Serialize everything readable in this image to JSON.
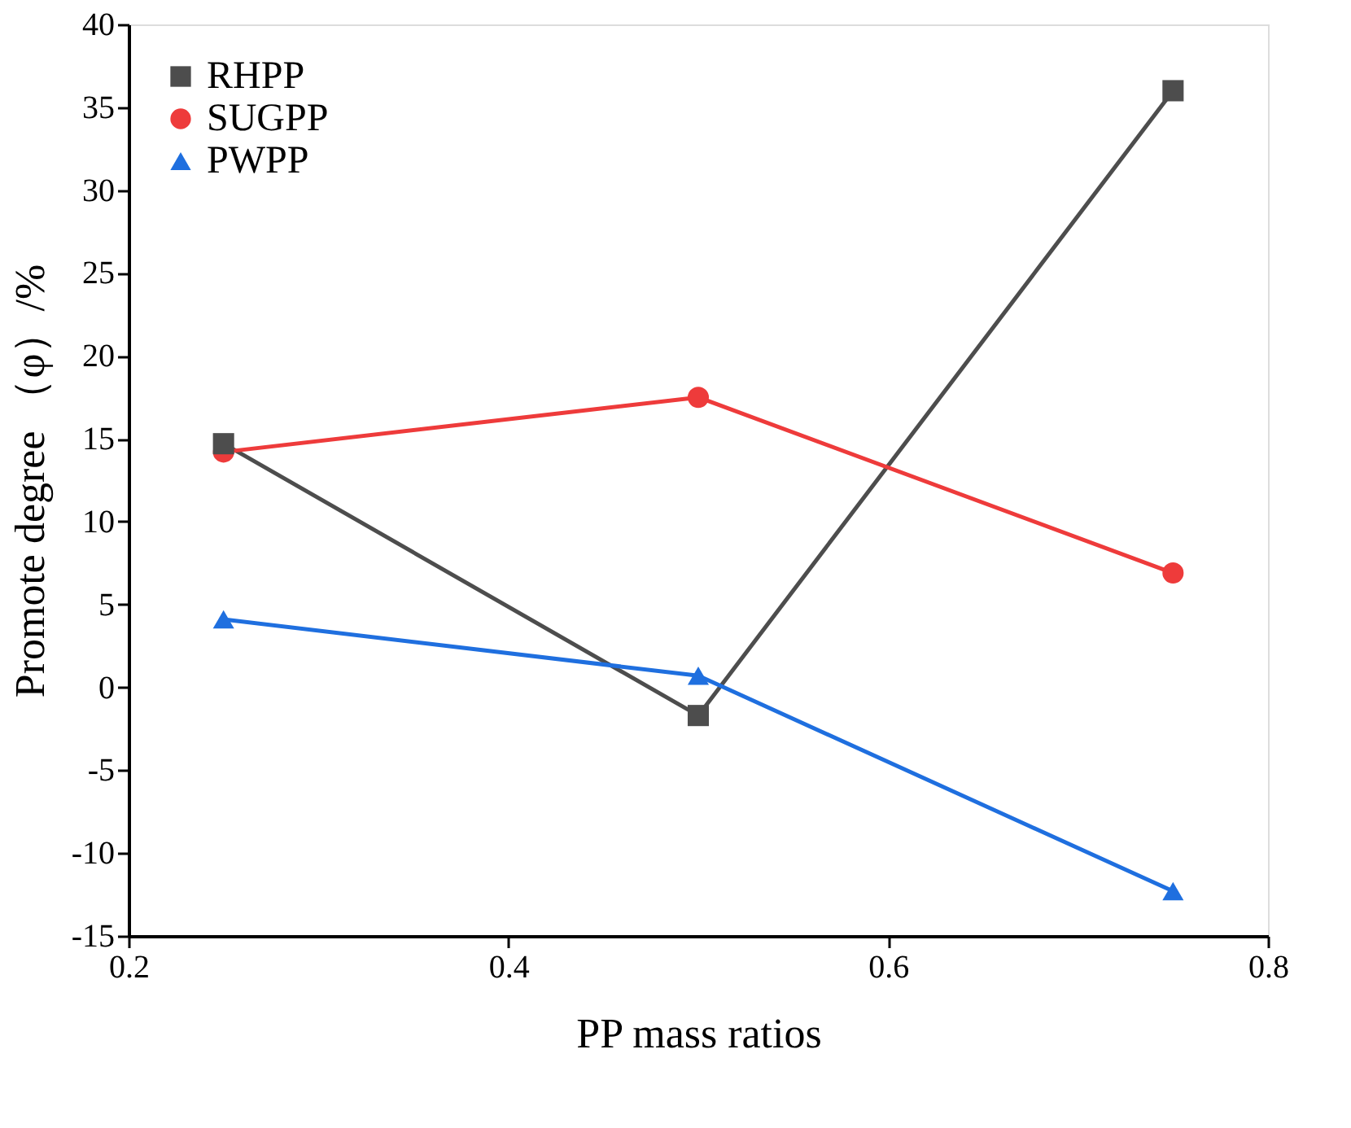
{
  "chart_data": {
    "type": "line",
    "xlabel": "PP mass ratios",
    "ylabel": "Promote degree （φ）/%",
    "x": [
      0.25,
      0.5,
      0.75
    ],
    "series": [
      {
        "name": "RHPP",
        "color": "#4d4d4d",
        "marker": "square",
        "values": [
          14.7,
          -1.7,
          36.0
        ]
      },
      {
        "name": "SUGPP",
        "color": "#ee3b3b",
        "marker": "circle",
        "values": [
          14.2,
          17.5,
          6.9
        ]
      },
      {
        "name": "PWPP",
        "color": "#1f6fdf",
        "marker": "triangle",
        "values": [
          4.1,
          0.7,
          -12.3
        ]
      }
    ],
    "xlim": [
      0.2,
      0.8
    ],
    "xticks": [
      0.2,
      0.4,
      0.6,
      0.8
    ],
    "ylim": [
      -15,
      40
    ],
    "yticks": [
      -15,
      -10,
      -5,
      0,
      5,
      10,
      15,
      20,
      25,
      30,
      35,
      40
    ],
    "grid": false,
    "legend": "top left",
    "line_style": "solid"
  }
}
